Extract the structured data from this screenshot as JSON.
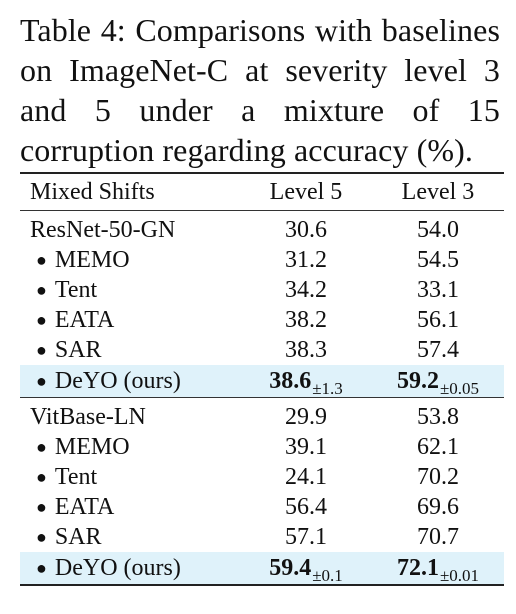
{
  "caption": "Table 4: Comparisons with baselines on ImageNet-C at severity level 3 and 5 under a mixture of 15 corruption regarding accuracy (%).",
  "table": {
    "headers": [
      "Mixed Shifts",
      "Level 5",
      "Level 3"
    ],
    "bullet": "●",
    "groups": [
      {
        "base": {
          "name": "ResNet-50-GN",
          "level5": "30.6",
          "level3": "54.0"
        },
        "methods": [
          {
            "name": "MEMO",
            "level5": "31.2",
            "level3": "54.5"
          },
          {
            "name": "Tent",
            "level5": "34.2",
            "level3": "33.1"
          },
          {
            "name": "EATA",
            "level5": "38.2",
            "level3": "56.1"
          },
          {
            "name": "SAR",
            "level5": "38.3",
            "level3": "57.4"
          }
        ],
        "ours": {
          "name": "DeYO (ours)",
          "level5": "38.6",
          "level5_std": "±1.3",
          "level3": "59.2",
          "level3_std": "±0.05"
        }
      },
      {
        "base": {
          "name": "VitBase-LN",
          "level5": "29.9",
          "level3": "53.8"
        },
        "methods": [
          {
            "name": "MEMO",
            "level5": "39.1",
            "level3": "62.1"
          },
          {
            "name": "Tent",
            "level5": "24.1",
            "level3": "70.2"
          },
          {
            "name": "EATA",
            "level5": "56.4",
            "level3": "69.6"
          },
          {
            "name": "SAR",
            "level5": "57.1",
            "level3": "70.7"
          }
        ],
        "ours": {
          "name": "DeYO (ours)",
          "level5": "59.4",
          "level5_std": "±0.1",
          "level3": "72.1",
          "level3_std": "±0.01"
        }
      }
    ]
  },
  "colors": {
    "highlight": "#dff2fa",
    "text": "#111111"
  }
}
